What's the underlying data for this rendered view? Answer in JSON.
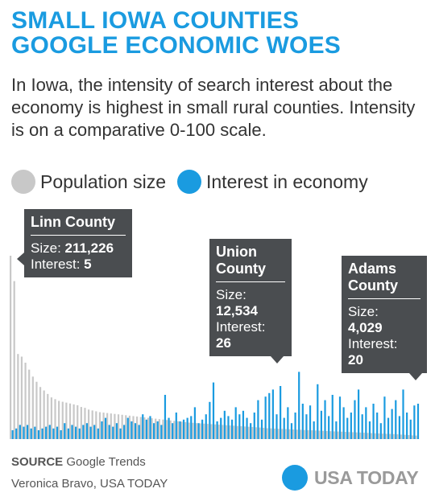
{
  "header": {
    "title_lines": [
      "SMALL IOWA COUNTIES",
      "GOOGLE ECONOMIC WOES"
    ],
    "subtitle": "In Iowa, the intensity of search interest about the economy is highest in small rural counties. Intensity is on a comparative 0-100 scale."
  },
  "legend": [
    {
      "label": "Population size",
      "color": "#c8c8c8",
      "icon": "circle"
    },
    {
      "label": "Interest in economy",
      "color": "#1a9be0",
      "icon": "circle"
    }
  ],
  "callouts": {
    "linn": {
      "title": "Linn County",
      "size_label": "Size:",
      "size_value": "211,226",
      "interest_label": "Interest:",
      "interest_value": "5"
    },
    "union": {
      "title": "Union County",
      "size_label": "Size:",
      "size_value": "12,534",
      "interest_label": "Interest:",
      "interest_value": "26"
    },
    "adams": {
      "title": "Adams County",
      "size_label": "Size:",
      "size_value": "4,029",
      "interest_label": "Interest:",
      "interest_value": "20"
    }
  },
  "chart_data": {
    "type": "bar",
    "order": "counties sorted by population, largest to smallest",
    "series": [
      {
        "name": "Population size",
        "color": "#c8c8c8",
        "values": [
          211226,
          182000,
          98000,
          95000,
          88000,
          80000,
          72000,
          66000,
          60000,
          56000,
          52000,
          48000,
          46000,
          44000,
          43000,
          42000,
          41000,
          40000,
          39000,
          37000,
          36000,
          34000,
          33000,
          32000,
          31000,
          30500,
          30000,
          29500,
          29000,
          28500,
          28000,
          27500,
          27000,
          26500,
          26000,
          25500,
          25000,
          24500,
          24000,
          23500,
          23000,
          22500,
          22000,
          21500,
          21000,
          20500,
          20000,
          19500,
          19000,
          18700,
          18400,
          18100,
          17800,
          17500,
          17200,
          16900,
          16600,
          16300,
          16000,
          15700,
          15400,
          15100,
          14800,
          14500,
          14200,
          13900,
          13600,
          13300,
          13000,
          12534,
          12300,
          12100,
          11900,
          11700,
          11500,
          11300,
          11100,
          10900,
          10700,
          10500,
          10300,
          10100,
          9900,
          9700,
          9500,
          9300,
          9100,
          8900,
          8700,
          8500,
          8300,
          8100,
          7900,
          7700,
          7500,
          7300,
          7100,
          6900,
          6700,
          6500,
          6300,
          6100,
          5900,
          5700,
          5500,
          5200,
          4900,
          4600,
          4300,
          4029
        ]
      },
      {
        "name": "Interest in economy",
        "color": "#1a9be0",
        "values": [
          5,
          6,
          8,
          7,
          8,
          6,
          7,
          5,
          6,
          7,
          8,
          6,
          7,
          5,
          9,
          6,
          8,
          7,
          6,
          8,
          9,
          7,
          8,
          6,
          10,
          12,
          8,
          7,
          9,
          6,
          8,
          12,
          10,
          9,
          8,
          14,
          11,
          13,
          9,
          10,
          8,
          25,
          12,
          9,
          15,
          10,
          11,
          12,
          13,
          18,
          9,
          11,
          14,
          21,
          32,
          10,
          12,
          16,
          13,
          11,
          18,
          14,
          16,
          12,
          9,
          15,
          22,
          11,
          24,
          26,
          28,
          14,
          30,
          12,
          18,
          9,
          15,
          38,
          20,
          14,
          19,
          10,
          31,
          16,
          22,
          13,
          25,
          10,
          24,
          18,
          12,
          15,
          22,
          28,
          14,
          18,
          10,
          20,
          15,
          9,
          24,
          12,
          17,
          22,
          13,
          28,
          15,
          11,
          19,
          20
        ]
      }
    ],
    "xlabel": "",
    "ylabel": "",
    "ylim_interest": [
      0,
      100
    ],
    "grid": false,
    "legend_position": "top-left"
  },
  "footer": {
    "source_label": "SOURCE",
    "source_text": "Google Trends",
    "credit": "Veronica Bravo, USA TODAY",
    "brand": "USA TODAY"
  }
}
